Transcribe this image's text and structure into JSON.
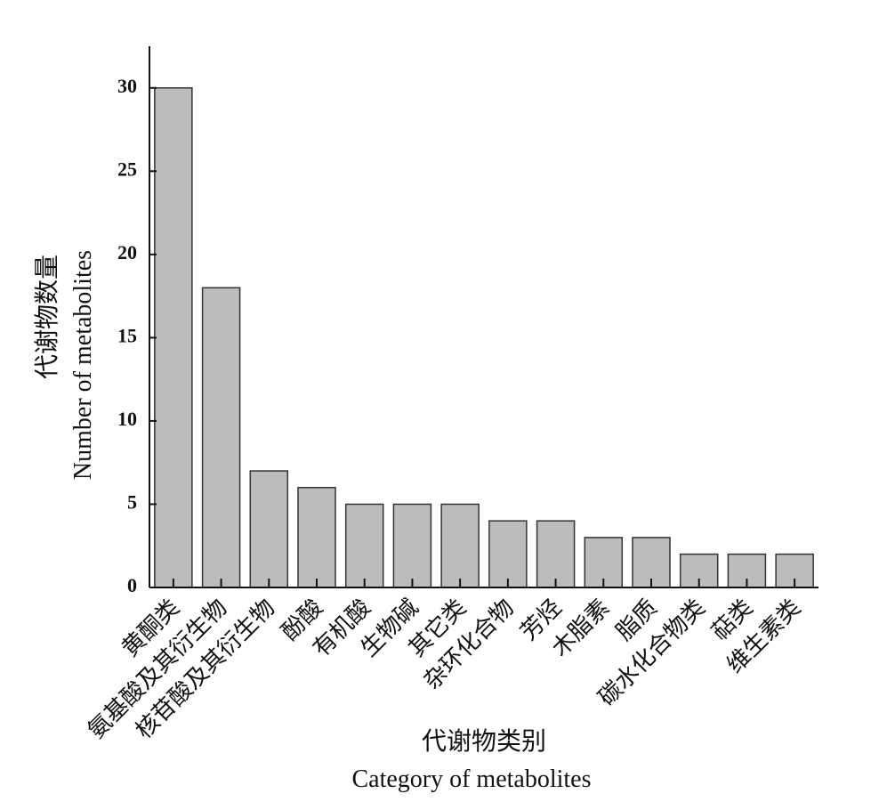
{
  "chart_data": {
    "type": "bar",
    "xlabel": "代谢物类别",
    "xlabel_en": "Category of metabolites",
    "ylabel": "代谢物数量",
    "ylabel_en": "Number of metabolites",
    "categories": [
      "黄酮类",
      "氨基酸及其衍生物",
      "核苷酸及其衍生物",
      "酚酸",
      "有机酸",
      "生物碱",
      "其它类",
      "杂环化合物",
      "芳烃",
      "木脂素",
      "脂质",
      "碳水化合物类",
      "萜类",
      "维生素类"
    ],
    "values": [
      30,
      18,
      7,
      6,
      5,
      5,
      5,
      4,
      4,
      3,
      3,
      2,
      2,
      2
    ],
    "color": "#bcbcbc",
    "ylim": [
      0,
      32.5
    ],
    "yticks": [
      0,
      5,
      10,
      15,
      20,
      25,
      30
    ],
    "grid": false
  }
}
